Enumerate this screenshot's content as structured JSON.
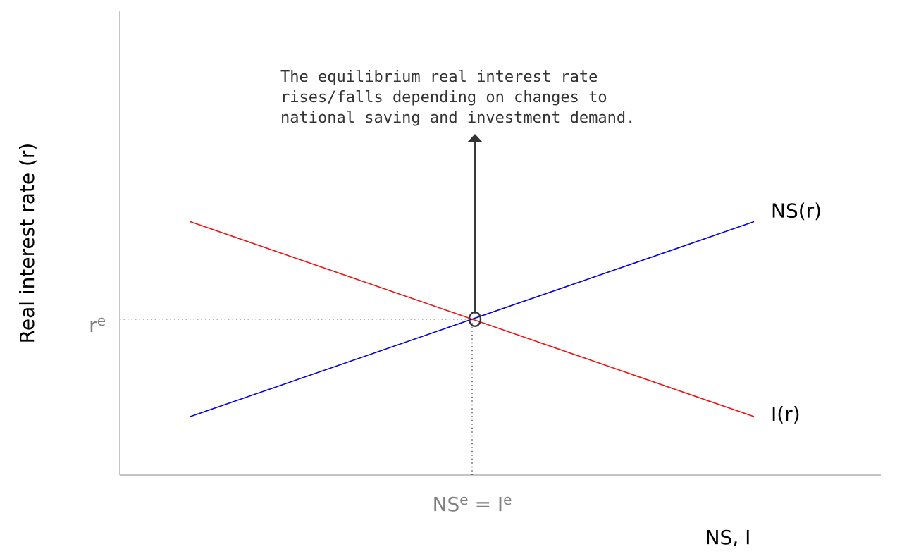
{
  "chart_data": {
    "type": "line",
    "ylabel": "Real interest rate (r)",
    "xlabel": "NS, I",
    "series": [
      {
        "name": "NS(r)",
        "color": "#0000e0",
        "x": [
          1,
          9
        ],
        "y": [
          1,
          7
        ]
      },
      {
        "name": "I(r)",
        "color": "#ee1111",
        "x": [
          1,
          9
        ],
        "y": [
          7,
          1
        ]
      }
    ],
    "equilibrium": {
      "x": 5,
      "y": 4,
      "y_tick_base": "r",
      "y_tick_sup": "e",
      "x_tick_parts": [
        "NS",
        "e",
        " = I",
        "e"
      ]
    },
    "xlim": [
      0,
      10.8
    ],
    "ylim": [
      -0.8,
      13.5
    ],
    "annotation": {
      "lines": [
        "The equilibrium real interest rate",
        "rises/falls depending on changes to",
        "national saving and investment demand."
      ],
      "arrow_direction": "up"
    },
    "grid": false
  }
}
